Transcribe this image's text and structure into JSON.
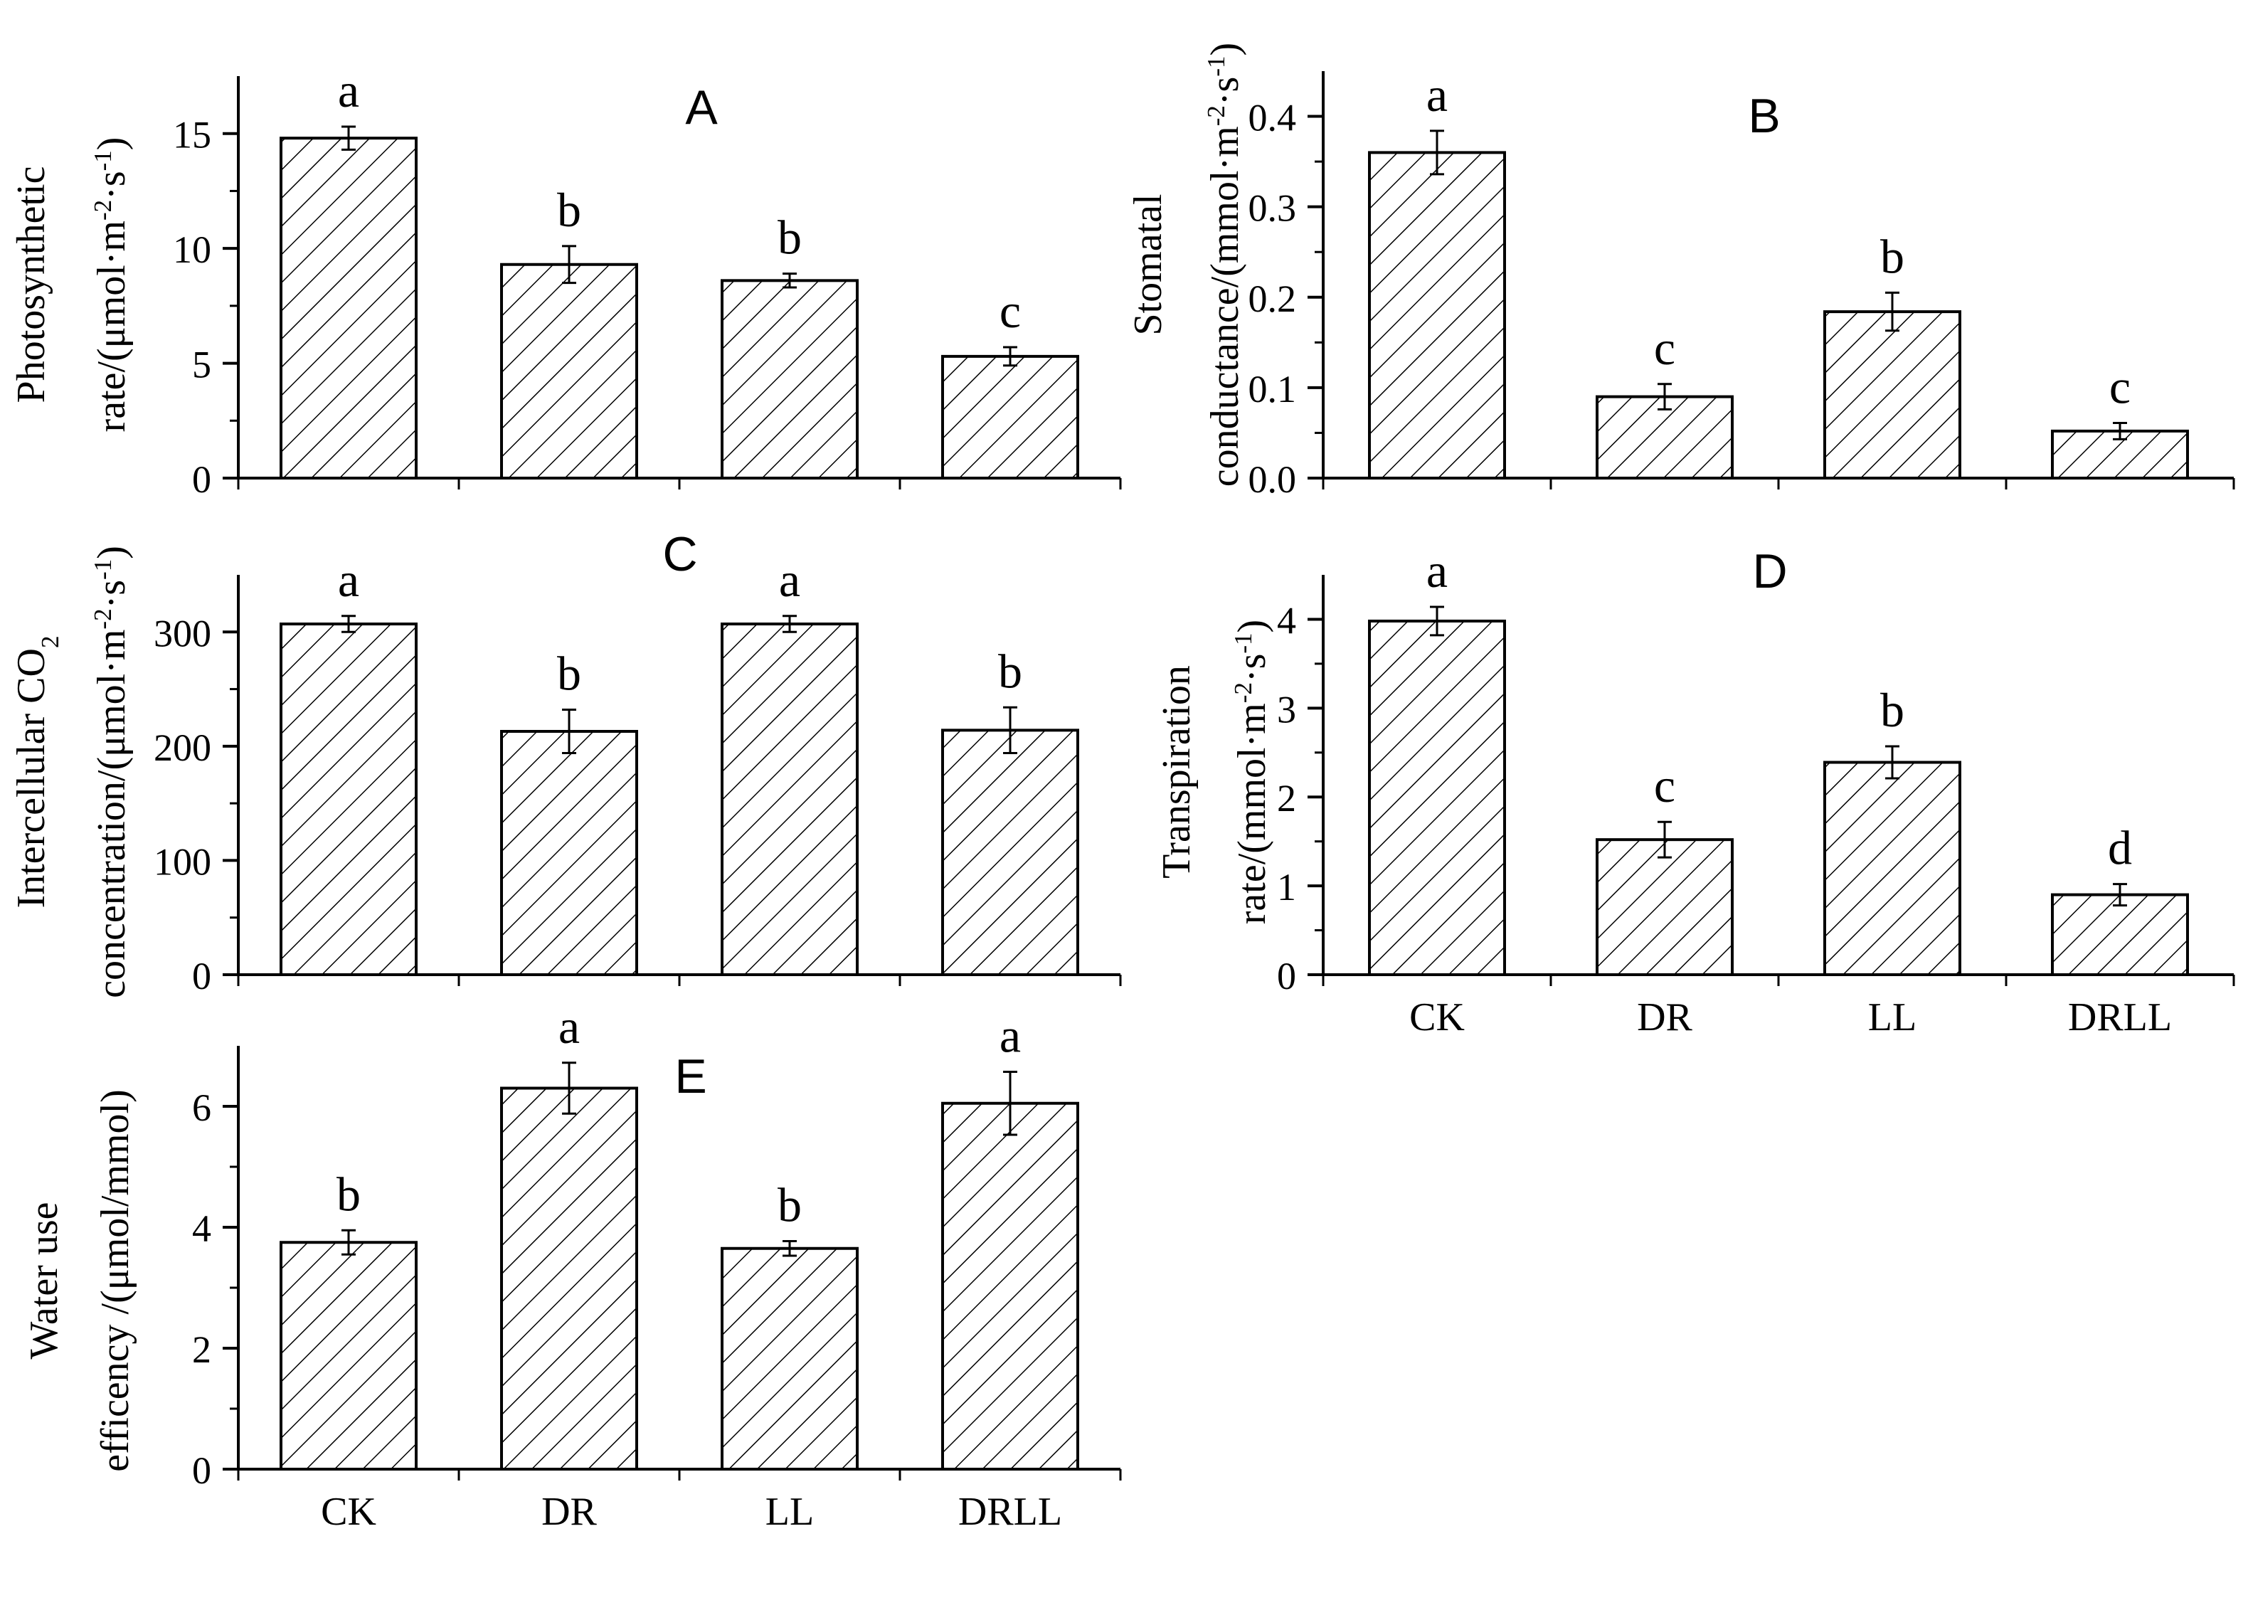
{
  "chart_data": [
    {
      "type": "bar",
      "panel": "A",
      "categories": [
        "CK",
        "DR",
        "LL",
        "DRLL"
      ],
      "values": [
        14.8,
        9.3,
        8.6,
        5.3
      ],
      "errors": [
        0.5,
        0.8,
        0.3,
        0.4
      ],
      "letters": [
        "a",
        "b",
        "b",
        "c"
      ],
      "ylabel_lines": [
        "Photosynthetic",
        "rate/(μmol·m-2·s-1)"
      ],
      "ylim": [
        0,
        17.5
      ],
      "yticks": [
        0,
        5,
        10,
        15
      ],
      "ytick_labels": [
        "0",
        "5",
        "10",
        "15"
      ],
      "show_categories": false
    },
    {
      "type": "bar",
      "panel": "B",
      "categories": [
        "CK",
        "DR",
        "LL",
        "DRLL"
      ],
      "values": [
        0.36,
        0.09,
        0.184,
        0.052
      ],
      "errors": [
        0.024,
        0.014,
        0.021,
        0.009
      ],
      "letters": [
        "a",
        "c",
        "b",
        "c"
      ],
      "ylabel_lines": [
        "Stomatal",
        "conductance/(mmol·m-2·s-1)"
      ],
      "ylim": [
        0,
        0.45
      ],
      "yticks": [
        0,
        0.1,
        0.2,
        0.3,
        0.4
      ],
      "ytick_labels": [
        "0.0",
        "0.1",
        "0.2",
        "0.3",
        "0.4"
      ],
      "show_categories": false
    },
    {
      "type": "bar",
      "panel": "C",
      "categories": [
        "CK",
        "DR",
        "LL",
        "DRLL"
      ],
      "values": [
        307,
        213,
        307,
        214
      ],
      "errors": [
        7,
        19,
        7,
        20
      ],
      "letters": [
        "a",
        "b",
        "a",
        "b"
      ],
      "ylabel_lines": [
        "Intercellular CO2",
        "concentration/(μmol·m-2·s-1)"
      ],
      "ylim": [
        0,
        350
      ],
      "yticks": [
        0,
        100,
        200,
        300
      ],
      "ytick_labels": [
        "0",
        "100",
        "200",
        "300"
      ],
      "show_categories": false
    },
    {
      "type": "bar",
      "panel": "D",
      "categories": [
        "CK",
        "DR",
        "LL",
        "DRLL"
      ],
      "values": [
        3.98,
        1.52,
        2.39,
        0.9
      ],
      "errors": [
        0.16,
        0.2,
        0.18,
        0.12
      ],
      "letters": [
        "a",
        "c",
        "b",
        "d"
      ],
      "ylabel_lines": [
        "Transpiration",
        "rate/(mmol·m-2·s-1)"
      ],
      "ylim": [
        0,
        4.5
      ],
      "yticks": [
        0,
        1,
        2,
        3,
        4
      ],
      "ytick_labels": [
        "0",
        "1",
        "2",
        "3",
        "4"
      ],
      "show_categories": true
    },
    {
      "type": "bar",
      "panel": "E",
      "categories": [
        "CK",
        "DR",
        "LL",
        "DRLL"
      ],
      "values": [
        3.75,
        6.3,
        3.65,
        6.05
      ],
      "errors": [
        0.2,
        0.42,
        0.12,
        0.52
      ],
      "letters": [
        "b",
        "a",
        "b",
        "a"
      ],
      "ylabel_lines": [
        "Water use",
        "efficency /(μmol/mmol)"
      ],
      "ylim": [
        0,
        7
      ],
      "yticks": [
        0,
        2,
        4,
        6
      ],
      "ytick_labels": [
        "0",
        "2",
        "4",
        "6"
      ],
      "show_categories": true
    }
  ]
}
